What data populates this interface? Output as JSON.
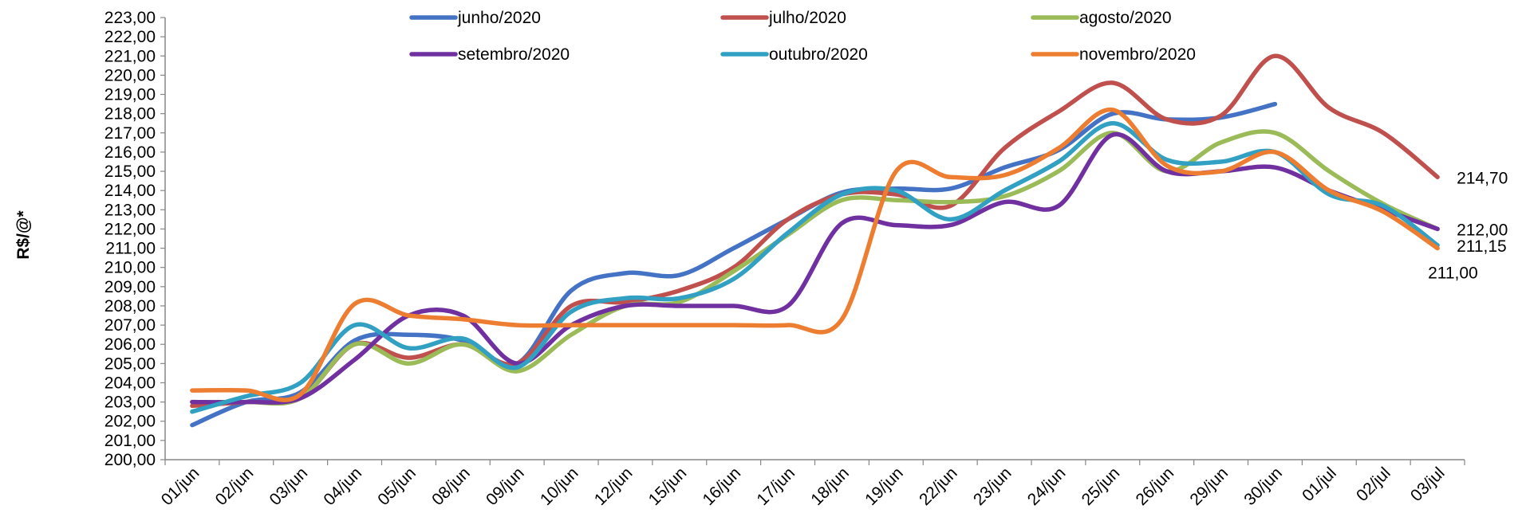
{
  "chart_data": {
    "type": "line",
    "title": "",
    "xlabel": "",
    "ylabel": "R$/@*",
    "ylim": [
      200,
      223
    ],
    "y_tick_step": 1,
    "y_tick_labels": [
      "200,00",
      "201,00",
      "202,00",
      "203,00",
      "204,00",
      "205,00",
      "206,00",
      "207,00",
      "208,00",
      "209,00",
      "210,00",
      "211,00",
      "212,00",
      "213,00",
      "214,00",
      "215,00",
      "216,00",
      "217,00",
      "218,00",
      "219,00",
      "220,00",
      "221,00",
      "222,00",
      "223,00"
    ],
    "grid": false,
    "legend_position": "top",
    "smooth": true,
    "categories": [
      "01/jun",
      "02/jun",
      "03/jun",
      "04/jun",
      "05/jun",
      "08/jun",
      "09/jun",
      "10/jun",
      "12/jun",
      "15/jun",
      "16/jun",
      "17/jun",
      "18/jun",
      "19/jun",
      "22/jun",
      "23/jun",
      "24/jun",
      "25/jun",
      "26/jun",
      "29/jun",
      "30/jun",
      "01/jul",
      "02/jul",
      "03/jul"
    ],
    "series": [
      {
        "name": "junho/2020",
        "color": "#4472C4",
        "values": [
          201.8,
          203.0,
          203.5,
          206.2,
          206.5,
          206.2,
          205.0,
          208.8,
          209.7,
          209.6,
          211.0,
          212.5,
          213.9,
          214.1,
          214.1,
          215.2,
          216.1,
          218.0,
          217.7,
          217.8,
          218.5,
          null,
          null,
          null
        ]
      },
      {
        "name": "julho/2020",
        "color": "#C0504D",
        "values": [
          202.8,
          203.0,
          203.2,
          206.0,
          205.3,
          206.0,
          205.0,
          208.0,
          208.2,
          208.8,
          210.0,
          212.5,
          213.8,
          213.8,
          213.2,
          216.2,
          218.1,
          219.6,
          217.7,
          217.9,
          221.0,
          218.3,
          217.0,
          214.7
        ]
      },
      {
        "name": "agosto/2020",
        "color": "#9BBB59",
        "values": [
          203.0,
          203.0,
          203.2,
          206.0,
          205.0,
          206.0,
          204.6,
          206.5,
          208.0,
          208.2,
          209.8,
          211.7,
          213.5,
          213.5,
          213.4,
          213.7,
          215.0,
          217.0,
          215.0,
          216.5,
          217.0,
          215.0,
          213.3,
          212.0
        ]
      },
      {
        "name": "setembro/2020",
        "color": "#7030A0",
        "values": [
          203.0,
          203.0,
          203.2,
          205.2,
          207.5,
          207.5,
          205.0,
          207.0,
          208.0,
          208.0,
          208.0,
          208.0,
          212.3,
          212.2,
          212.2,
          213.4,
          213.2,
          216.9,
          215.0,
          215.0,
          215.2,
          214.0,
          213.0,
          212.0
        ]
      },
      {
        "name": "outubro/2020",
        "color": "#31A0C2",
        "values": [
          202.5,
          203.3,
          204.0,
          207.0,
          205.8,
          206.3,
          204.8,
          207.7,
          208.4,
          208.4,
          209.4,
          211.8,
          213.8,
          214.0,
          212.5,
          214.0,
          215.5,
          217.5,
          215.6,
          215.5,
          216.0,
          213.8,
          213.2,
          211.15
        ]
      },
      {
        "name": "novembro/2020",
        "color": "#ED7D31",
        "values": [
          203.6,
          203.6,
          203.4,
          208.1,
          207.5,
          207.3,
          207.0,
          207.0,
          207.0,
          207.0,
          207.0,
          207.0,
          207.3,
          215.0,
          214.7,
          214.8,
          216.2,
          218.2,
          215.3,
          215.0,
          216.0,
          214.0,
          212.9,
          211.0
        ]
      }
    ],
    "end_labels": [
      {
        "text": "214,70",
        "series": "julho/2020",
        "value": 214.7
      },
      {
        "text": "212,00",
        "series": "setembro/2020",
        "value": 212.0
      },
      {
        "text": "211,15",
        "series": "outubro/2020",
        "value": 211.15
      },
      {
        "text": "211,00",
        "series": "novembro/2020",
        "value": 211.0
      }
    ]
  }
}
